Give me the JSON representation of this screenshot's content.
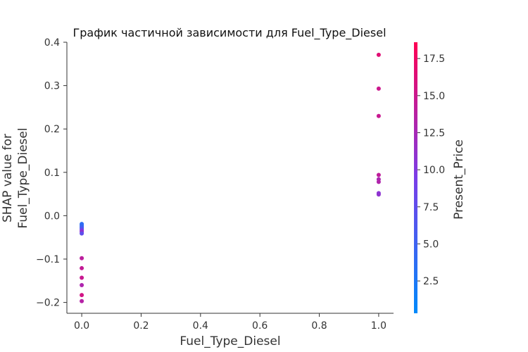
{
  "chart_data": {
    "type": "scatter",
    "title": "График частичной зависимости для Fuel_Type_Diesel",
    "xlabel": "Fuel_Type_Diesel",
    "ylabel_lines": [
      "SHAP value for",
      "Fuel_Type_Diesel"
    ],
    "xlim": [
      -0.05,
      1.05
    ],
    "ylim": [
      -0.225,
      0.4
    ],
    "xticks": [
      0.0,
      0.2,
      0.4,
      0.6,
      0.8,
      1.0
    ],
    "xtick_labels": [
      "0.0",
      "0.2",
      "0.4",
      "0.6",
      "0.8",
      "1.0"
    ],
    "yticks": [
      -0.2,
      -0.1,
      0.0,
      0.1,
      0.2,
      0.3,
      0.4
    ],
    "ytick_labels": [
      "−0.2",
      "−0.1",
      "0.0",
      "0.1",
      "0.2",
      "0.3",
      "0.4"
    ],
    "grid": false,
    "colorbar": {
      "label": "Present_Price",
      "min": 0.32,
      "max": 18.6,
      "ticks": [
        2.5,
        5.0,
        7.5,
        10.0,
        12.5,
        15.0,
        17.5
      ],
      "tick_labels": [
        "2.5",
        "5.0",
        "7.5",
        "10.0",
        "12.5",
        "15.0",
        "17.5"
      ],
      "colormap": [
        "#008afb",
        "#7a3de8",
        "#ff0052"
      ]
    },
    "points": [
      {
        "x": 1.0,
        "y": 0.371,
        "c": 16.5
      },
      {
        "x": 1.0,
        "y": 0.293,
        "c": 15.0
      },
      {
        "x": 1.0,
        "y": 0.23,
        "c": 14.8
      },
      {
        "x": 1.0,
        "y": 0.094,
        "c": 14.2
      },
      {
        "x": 1.0,
        "y": 0.084,
        "c": 12.8
      },
      {
        "x": 1.0,
        "y": 0.078,
        "c": 13.2
      },
      {
        "x": 1.0,
        "y": 0.052,
        "c": 10.5
      },
      {
        "x": 1.0,
        "y": 0.049,
        "c": 11.0
      },
      {
        "x": 0.0,
        "y": -0.019,
        "c": 3.5
      },
      {
        "x": 0.0,
        "y": -0.022,
        "c": 4.0
      },
      {
        "x": 0.0,
        "y": -0.025,
        "c": 4.2
      },
      {
        "x": 0.0,
        "y": -0.028,
        "c": 5.2
      },
      {
        "x": 0.0,
        "y": -0.031,
        "c": 6.8
      },
      {
        "x": 0.0,
        "y": -0.034,
        "c": 9.5
      },
      {
        "x": 0.0,
        "y": -0.037,
        "c": 11.2
      },
      {
        "x": 0.0,
        "y": -0.041,
        "c": 7.5
      },
      {
        "x": 0.0,
        "y": -0.098,
        "c": 14.0
      },
      {
        "x": 0.0,
        "y": -0.121,
        "c": 14.5
      },
      {
        "x": 0.0,
        "y": -0.143,
        "c": 14.8
      },
      {
        "x": 0.0,
        "y": -0.16,
        "c": 13.0
      },
      {
        "x": 0.0,
        "y": -0.183,
        "c": 15.5
      },
      {
        "x": 0.0,
        "y": -0.197,
        "c": 13.5
      }
    ]
  }
}
